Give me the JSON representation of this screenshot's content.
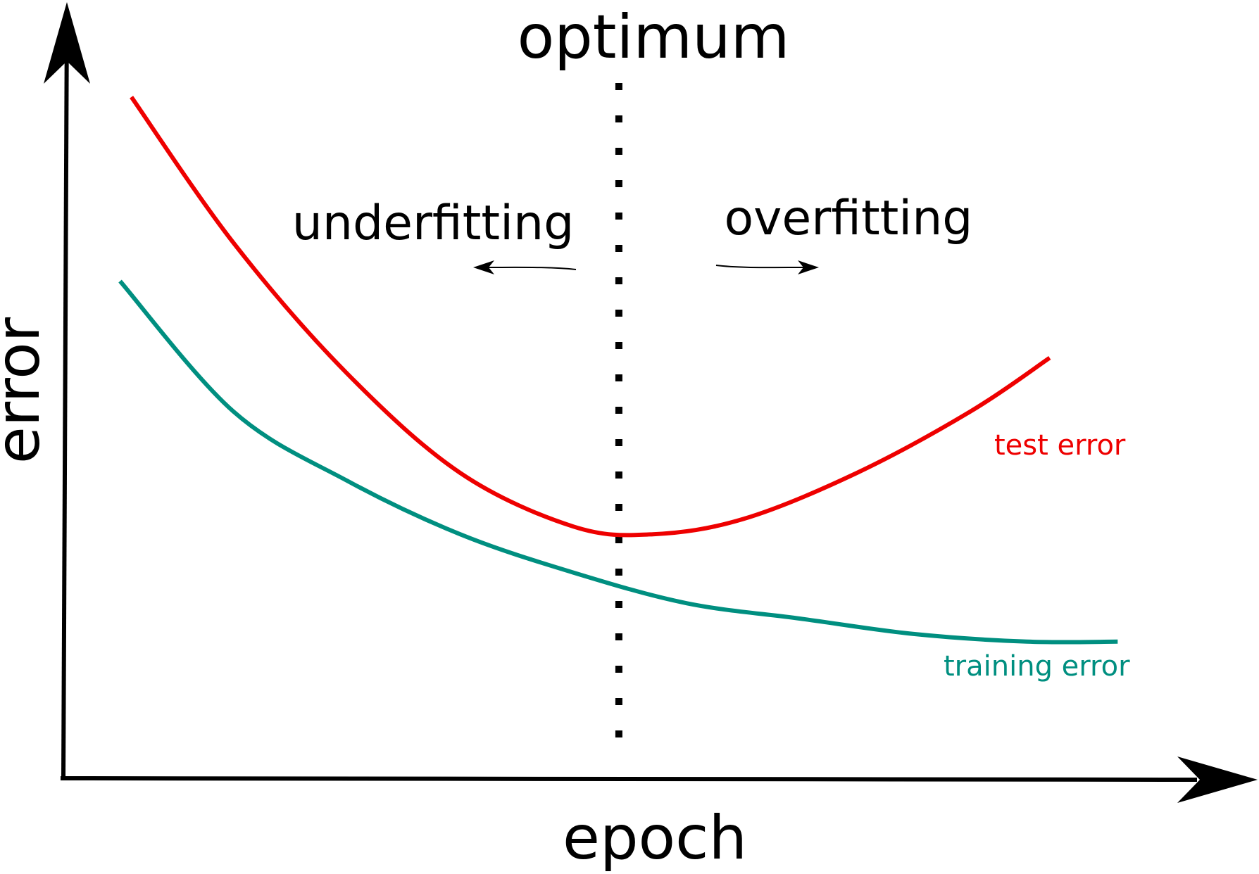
{
  "chart_data": {
    "type": "line",
    "xlabel": "epoch",
    "ylabel": "error",
    "xlim": [
      0,
      1
    ],
    "ylim": [
      0,
      1
    ],
    "grid": false,
    "legend": "none",
    "optimum": {
      "label": "optimum",
      "x": 0.49
    },
    "regions": {
      "left_label": "underfitting",
      "left_direction": "left",
      "right_label": "overfitting",
      "right_direction": "right"
    },
    "series": [
      {
        "name": "test error",
        "color": "#ee0000",
        "x": [
          0.06,
          0.15,
          0.25,
          0.35,
          0.45,
          0.52,
          0.6,
          0.7,
          0.8,
          0.87
        ],
        "y": [
          0.89,
          0.7,
          0.53,
          0.4,
          0.33,
          0.32,
          0.34,
          0.4,
          0.48,
          0.55
        ]
      },
      {
        "name": "training error",
        "color": "#008f80",
        "x": [
          0.05,
          0.15,
          0.25,
          0.35,
          0.45,
          0.55,
          0.65,
          0.75,
          0.85,
          0.93
        ],
        "y": [
          0.65,
          0.48,
          0.39,
          0.32,
          0.27,
          0.23,
          0.21,
          0.19,
          0.18,
          0.18
        ]
      }
    ]
  }
}
